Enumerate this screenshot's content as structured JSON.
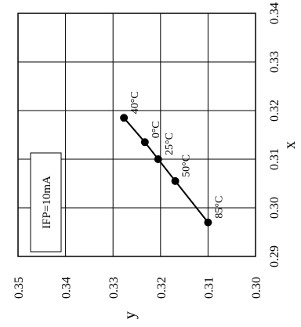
{
  "chart_data": {
    "type": "line",
    "title": "",
    "xlabel": "x",
    "ylabel": "y",
    "xlim": [
      0.29,
      0.34
    ],
    "ylim": [
      0.3,
      0.35
    ],
    "xticks": [
      "0.29",
      "0.30",
      "0.31",
      "0.32",
      "0.33",
      "0.34"
    ],
    "yticks": [
      "0.30",
      "0.31",
      "0.32",
      "0.33",
      "0.34",
      "0.35"
    ],
    "grid": true,
    "orientation": "rotated-90-ccw",
    "condition_label": "IFP=10mA",
    "series": [
      {
        "points": [
          {
            "x": 0.3185,
            "y": 0.3277,
            "label": "40°C"
          },
          {
            "x": 0.3135,
            "y": 0.3233,
            "label": "0°C"
          },
          {
            "x": 0.31,
            "y": 0.3205,
            "label": "25°C"
          },
          {
            "x": 0.3055,
            "y": 0.3169,
            "label": "50°C"
          },
          {
            "x": 0.297,
            "y": 0.31,
            "label": "85°C"
          }
        ]
      }
    ]
  }
}
